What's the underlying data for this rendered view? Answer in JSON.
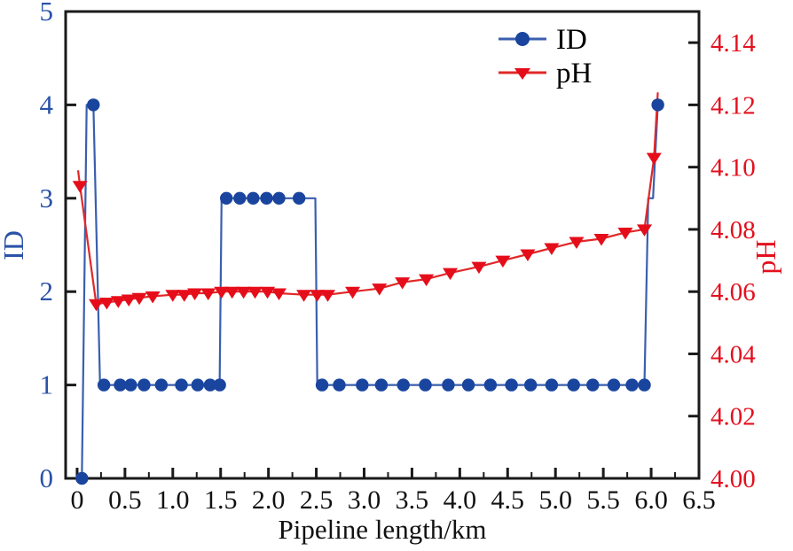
{
  "figure": {
    "background_color": "#ffffff",
    "frame_color": "#1a1a1a"
  },
  "chart_data": {
    "type": "line",
    "title": "",
    "xlabel": "Pipeline length/km",
    "grid": false,
    "legend_position": "upper center-right",
    "x_range": [
      -0.12,
      6.5
    ],
    "x_major_tick_labels": [
      "0",
      "0.5",
      "1.0",
      "1.5",
      "2.0",
      "2.5",
      "3.0",
      "3.5",
      "4.0",
      "4.5",
      "5.0",
      "5.5",
      "6.0",
      "6.5"
    ],
    "x_minor_tick_step": 0.25,
    "axes": {
      "left": {
        "label": "ID",
        "color": "#2a52a8",
        "range": [
          0,
          5
        ],
        "tick_labels": [
          "0",
          "1",
          "2",
          "3",
          "4",
          "5"
        ]
      },
      "right": {
        "label": "pH",
        "color": "#e3101e",
        "range": [
          4.0,
          4.15
        ],
        "tick_labels": [
          "4.00",
          "4.02",
          "4.04",
          "4.06",
          "4.08",
          "4.10",
          "4.12",
          "4.14"
        ]
      }
    },
    "series": [
      {
        "name": "ID",
        "axis": "left",
        "marker": "circle",
        "line_color": "#3a5fae",
        "marker_color": "#1a459e",
        "line": [
          [
            0.05,
            0
          ],
          [
            0.1,
            4
          ],
          [
            0.17,
            4
          ],
          [
            0.24,
            1
          ],
          [
            1.49,
            1
          ],
          [
            1.51,
            3
          ],
          [
            2.49,
            3
          ],
          [
            2.51,
            1
          ],
          [
            5.93,
            1
          ],
          [
            5.97,
            3
          ],
          [
            6.02,
            3
          ],
          [
            6.07,
            4
          ]
        ],
        "points": [
          [
            0.05,
            0
          ],
          [
            0.17,
            4
          ],
          [
            0.28,
            1
          ],
          [
            0.45,
            1
          ],
          [
            0.56,
            1
          ],
          [
            0.7,
            1
          ],
          [
            0.88,
            1
          ],
          [
            1.09,
            1
          ],
          [
            1.26,
            1
          ],
          [
            1.39,
            1
          ],
          [
            1.49,
            1
          ],
          [
            1.56,
            3
          ],
          [
            1.7,
            3
          ],
          [
            1.84,
            3
          ],
          [
            1.98,
            3
          ],
          [
            2.11,
            3
          ],
          [
            2.32,
            3
          ],
          [
            2.56,
            1
          ],
          [
            2.74,
            1
          ],
          [
            2.98,
            1
          ],
          [
            3.18,
            1
          ],
          [
            3.41,
            1
          ],
          [
            3.64,
            1
          ],
          [
            3.88,
            1
          ],
          [
            4.09,
            1
          ],
          [
            4.32,
            1
          ],
          [
            4.54,
            1
          ],
          [
            4.74,
            1
          ],
          [
            4.96,
            1
          ],
          [
            5.19,
            1
          ],
          [
            5.39,
            1
          ],
          [
            5.61,
            1
          ],
          [
            5.8,
            1
          ],
          [
            5.93,
            1
          ],
          [
            6.07,
            4
          ]
        ]
      },
      {
        "name": "pH",
        "axis": "right",
        "marker": "triangle-down",
        "line_color": "#e02829",
        "marker_color": "#e60d1a",
        "line": [
          [
            0.01,
            4.099
          ],
          [
            0.03,
            4.094
          ],
          [
            0.2,
            4.056
          ],
          [
            0.31,
            4.0565
          ],
          [
            0.43,
            4.057
          ],
          [
            0.54,
            4.0575
          ],
          [
            0.65,
            4.058
          ],
          [
            0.79,
            4.0585
          ],
          [
            1.0,
            4.059
          ],
          [
            1.12,
            4.059
          ],
          [
            1.23,
            4.0595
          ],
          [
            1.37,
            4.0595
          ],
          [
            1.51,
            4.06
          ],
          [
            1.62,
            4.06
          ],
          [
            1.74,
            4.06
          ],
          [
            1.86,
            4.06
          ],
          [
            1.99,
            4.06
          ],
          [
            2.11,
            4.0595
          ],
          [
            2.37,
            4.059
          ],
          [
            2.51,
            4.059
          ],
          [
            2.62,
            4.059
          ],
          [
            2.88,
            4.06
          ],
          [
            3.16,
            4.061
          ],
          [
            3.4,
            4.063
          ],
          [
            3.65,
            4.064
          ],
          [
            3.9,
            4.066
          ],
          [
            4.2,
            4.068
          ],
          [
            4.45,
            4.07
          ],
          [
            4.71,
            4.072
          ],
          [
            4.96,
            4.074
          ],
          [
            5.22,
            4.076
          ],
          [
            5.48,
            4.077
          ],
          [
            5.73,
            4.079
          ],
          [
            5.93,
            4.08
          ],
          [
            6.03,
            4.103
          ],
          [
            6.07,
            4.124
          ]
        ],
        "points": [
          [
            0.03,
            4.094
          ],
          [
            0.2,
            4.056
          ],
          [
            0.31,
            4.0565
          ],
          [
            0.43,
            4.057
          ],
          [
            0.54,
            4.0575
          ],
          [
            0.65,
            4.058
          ],
          [
            0.79,
            4.0585
          ],
          [
            1.0,
            4.059
          ],
          [
            1.12,
            4.059
          ],
          [
            1.23,
            4.0595
          ],
          [
            1.37,
            4.0595
          ],
          [
            1.51,
            4.06
          ],
          [
            1.62,
            4.06
          ],
          [
            1.74,
            4.06
          ],
          [
            1.86,
            4.06
          ],
          [
            1.99,
            4.06
          ],
          [
            2.11,
            4.0595
          ],
          [
            2.37,
            4.059
          ],
          [
            2.51,
            4.059
          ],
          [
            2.62,
            4.059
          ],
          [
            2.88,
            4.06
          ],
          [
            3.16,
            4.061
          ],
          [
            3.4,
            4.063
          ],
          [
            3.65,
            4.064
          ],
          [
            3.9,
            4.066
          ],
          [
            4.2,
            4.068
          ],
          [
            4.45,
            4.07
          ],
          [
            4.71,
            4.072
          ],
          [
            4.96,
            4.074
          ],
          [
            5.22,
            4.076
          ],
          [
            5.48,
            4.077
          ],
          [
            5.73,
            4.079
          ],
          [
            5.93,
            4.08
          ],
          [
            6.03,
            4.103
          ]
        ]
      }
    ]
  }
}
